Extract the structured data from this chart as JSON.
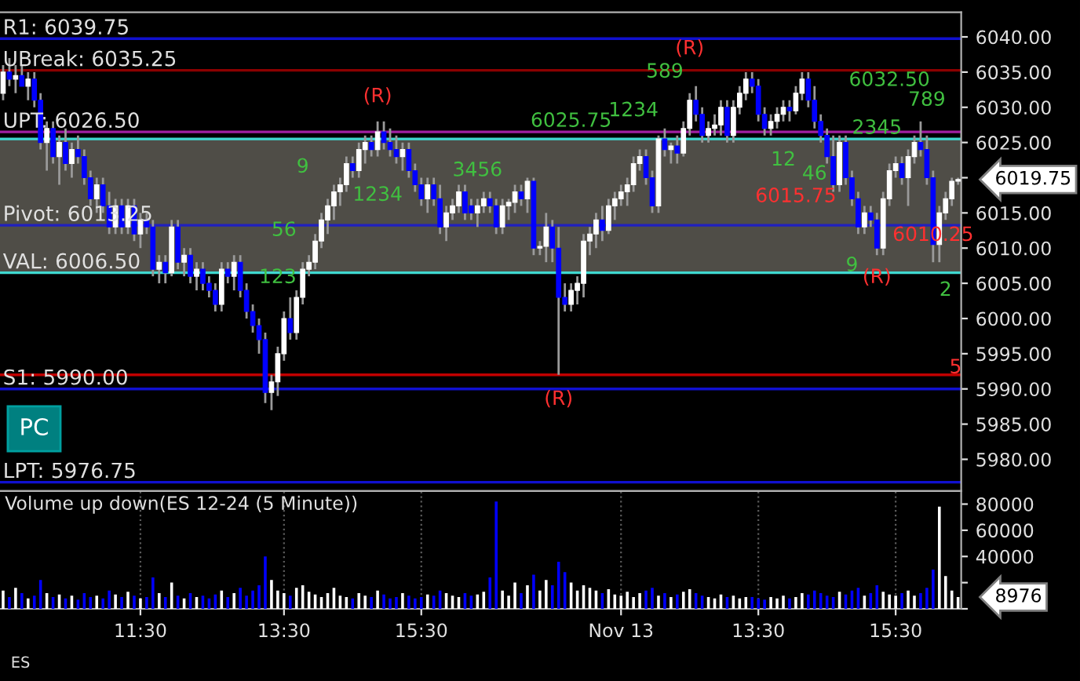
{
  "chart_data": [
    {
      "type": "candlestick",
      "tick_labels": "y",
      "categories": [
        null,
        null,
        null,
        null,
        null,
        null,
        null,
        null,
        null,
        null,
        null,
        null,
        null,
        null,
        null,
        null,
        null,
        null,
        null,
        null,
        null,
        null,
        null,
        null,
        null,
        null,
        null,
        null,
        null,
        null,
        null,
        null,
        null,
        null,
        null,
        null,
        null,
        null,
        null,
        null,
        null,
        null,
        null,
        null,
        null,
        null,
        null,
        null,
        null,
        null,
        null,
        null,
        null,
        null,
        null,
        null,
        null,
        null,
        null,
        null,
        null,
        null,
        null,
        null,
        null,
        null,
        null,
        null,
        null,
        null,
        null,
        null,
        null,
        null,
        null,
        null,
        null,
        null,
        null,
        null,
        null,
        null,
        null,
        null,
        null,
        null,
        null,
        null,
        null,
        null,
        null,
        null,
        null,
        null,
        null,
        null,
        null,
        null,
        null,
        null,
        null,
        null,
        null,
        null,
        null,
        null,
        null,
        null,
        null,
        null,
        null,
        null,
        null,
        null,
        null,
        null,
        null,
        null,
        null,
        null,
        null,
        null,
        null,
        null,
        null,
        null,
        null,
        null,
        null,
        null,
        null,
        null,
        null,
        null,
        null,
        null,
        null,
        null,
        null,
        null,
        null,
        null,
        null,
        null,
        null,
        null,
        null,
        null,
        null,
        null,
        null,
        null,
        null,
        null
      ],
      "ohlc": [
        [
          6032,
          6036,
          6031,
          6035
        ],
        [
          6035,
          6037,
          6033,
          6034
        ],
        [
          6034,
          6036,
          6032,
          6034.5
        ],
        [
          6034.5,
          6036,
          6033,
          6033
        ],
        [
          6033,
          6035,
          6031,
          6034
        ],
        [
          6034,
          6035,
          6030,
          6031
        ],
        [
          6031,
          6032,
          6024,
          6025
        ],
        [
          6025,
          6028,
          6021,
          6027
        ],
        [
          6027,
          6028,
          6022,
          6023
        ],
        [
          6023,
          6026,
          6019,
          6025
        ],
        [
          6025,
          6027,
          6021,
          6022
        ],
        [
          6022,
          6025,
          6020,
          6024
        ],
        [
          6024,
          6026,
          6022,
          6023
        ],
        [
          6023,
          6024,
          6019,
          6020
        ],
        [
          6020,
          6021,
          6016,
          6017
        ],
        [
          6017,
          6020,
          6015,
          6019
        ],
        [
          6019,
          6020,
          6015,
          6016
        ],
        [
          6016,
          6018,
          6012,
          6013
        ],
        [
          6013,
          6017,
          6012,
          6016
        ],
        [
          6016,
          6017,
          6012,
          6013
        ],
        [
          6013,
          6017,
          6012,
          6016
        ],
        [
          6016,
          6017,
          6011,
          6012
        ],
        [
          6012,
          6015,
          6010,
          6014
        ],
        [
          6014,
          6015,
          6012,
          6013
        ],
        [
          6013,
          6014,
          6006,
          6007
        ],
        [
          6007,
          6009,
          6005,
          6008
        ],
        [
          6008,
          6009,
          6005,
          6006.5
        ],
        [
          6006.5,
          6014,
          6006,
          6013
        ],
        [
          6013,
          6014,
          6007,
          6008
        ],
        [
          6008,
          6010,
          6006,
          6009
        ],
        [
          6009,
          6010,
          6005,
          6006
        ],
        [
          6006,
          6008,
          6004,
          6007
        ],
        [
          6007,
          6008,
          6004,
          6005
        ],
        [
          6005,
          6006,
          6003,
          6004
        ],
        [
          6004,
          6005,
          6001,
          6002
        ],
        [
          6002,
          6008,
          6001,
          6007
        ],
        [
          6007,
          6008,
          6005,
          6006
        ],
        [
          6006,
          6009,
          6004,
          6008
        ],
        [
          6008,
          6009,
          6003,
          6004
        ],
        [
          6004,
          6005,
          6000,
          6001
        ],
        [
          6001,
          6002,
          5998,
          5999
        ],
        [
          5999,
          6000,
          5995,
          5997
        ],
        [
          5997,
          5998,
          5988,
          5989.5
        ],
        [
          5989.5,
          5992,
          5987,
          5991
        ],
        [
          5991,
          5996,
          5989,
          5995
        ],
        [
          5995,
          6001,
          5994,
          6000
        ],
        [
          6000,
          6003,
          5997,
          5998
        ],
        [
          5998,
          6004,
          5997,
          6003
        ],
        [
          6003,
          6008,
          6002,
          6007
        ],
        [
          6007,
          6009,
          6006,
          6008
        ],
        [
          6008,
          6012,
          6007,
          6011
        ],
        [
          6011,
          6015,
          6010,
          6014
        ],
        [
          6014,
          6017,
          6012,
          6016
        ],
        [
          6016,
          6019,
          6014,
          6018
        ],
        [
          6018,
          6020,
          6016,
          6019
        ],
        [
          6019,
          6023,
          6018,
          6022
        ],
        [
          6022,
          6023,
          6020,
          6021
        ],
        [
          6021,
          6025,
          6020,
          6024
        ],
        [
          6024,
          6026,
          6022,
          6025
        ],
        [
          6025,
          6026,
          6023,
          6024
        ],
        [
          6024,
          6028,
          6023,
          6026.5
        ],
        [
          6026.5,
          6028,
          6024,
          6025
        ],
        [
          6025,
          6027,
          6023,
          6024
        ],
        [
          6024,
          6026,
          6022,
          6023
        ],
        [
          6023,
          6025,
          6021,
          6024
        ],
        [
          6024,
          6025,
          6020,
          6021
        ],
        [
          6021,
          6022,
          6018,
          6019
        ],
        [
          6019,
          6020,
          6016,
          6017
        ],
        [
          6017,
          6020,
          6015,
          6019
        ],
        [
          6019,
          6020,
          6016,
          6017
        ],
        [
          6017,
          6019,
          6012,
          6013
        ],
        [
          6013,
          6016,
          6011,
          6015
        ],
        [
          6015,
          6017,
          6014,
          6016
        ],
        [
          6016,
          6019,
          6015,
          6018
        ],
        [
          6018,
          6019,
          6014,
          6015
        ],
        [
          6016,
          6017,
          6014,
          6015
        ],
        [
          6015,
          6017,
          6013,
          6016
        ],
        [
          6016,
          6018,
          6015,
          6017
        ],
        [
          6017,
          6018,
          6015,
          6016
        ],
        [
          6016,
          6017,
          6012,
          6013
        ],
        [
          6013,
          6017,
          6012,
          6016
        ],
        [
          6016,
          6017,
          6014,
          6016.5
        ],
        [
          6016.5,
          6019,
          6015,
          6018
        ],
        [
          6018,
          6019,
          6016,
          6017
        ],
        [
          6017,
          6020,
          6015,
          6019.5
        ],
        [
          6019.5,
          6020,
          6009,
          6010
        ],
        [
          6010,
          6011,
          6009,
          6010.25
        ],
        [
          6010.25,
          6015,
          6008,
          6013
        ],
        [
          6013,
          6014,
          6008,
          6010
        ],
        [
          6010,
          6013,
          5992,
          6003
        ],
        [
          6003,
          6005,
          6001,
          6002
        ],
        [
          6002,
          6005,
          6001,
          6004
        ],
        [
          6004,
          6006,
          6002,
          6005
        ],
        [
          6005,
          6012,
          6003,
          6011
        ],
        [
          6011,
          6013,
          6009,
          6012
        ],
        [
          6012,
          6015,
          6010,
          6014
        ],
        [
          6014,
          6016,
          6011,
          6012.5
        ],
        [
          6012.5,
          6017,
          6012,
          6016
        ],
        [
          6016,
          6018,
          6014,
          6017
        ],
        [
          6017,
          6019,
          6016,
          6018
        ],
        [
          6018,
          6020,
          6016,
          6019
        ],
        [
          6019,
          6023,
          6018,
          6022
        ],
        [
          6022,
          6024,
          6021,
          6023
        ],
        [
          6023,
          6024,
          6019,
          6020
        ],
        [
          6020,
          6021,
          6015,
          6016
        ],
        [
          6016,
          6026,
          6015,
          6025.5
        ],
        [
          6025.5,
          6027,
          6023,
          6024
        ],
        [
          6024,
          6025,
          6022,
          6024.5
        ],
        [
          6024.5,
          6026,
          6022,
          6023.5
        ],
        [
          6023.5,
          6028,
          6023,
          6027
        ],
        [
          6027,
          6032,
          6026,
          6031
        ],
        [
          6031,
          6033,
          6028,
          6029
        ],
        [
          6029,
          6030,
          6025,
          6026
        ],
        [
          6026,
          6028,
          6025,
          6027
        ],
        [
          6027,
          6029,
          6026,
          6027.5
        ],
        [
          6027.5,
          6031,
          6026,
          6030
        ],
        [
          6030,
          6031,
          6025,
          6026
        ],
        [
          6026,
          6031,
          6025,
          6030
        ],
        [
          6030,
          6033,
          6029,
          6032
        ],
        [
          6032,
          6035,
          6031,
          6034
        ],
        [
          6034,
          6035,
          6032,
          6033
        ],
        [
          6033,
          6034,
          6028,
          6029
        ],
        [
          6029,
          6030,
          6026,
          6027
        ],
        [
          6027,
          6029,
          6026,
          6028
        ],
        [
          6028,
          6030,
          6027,
          6029
        ],
        [
          6029,
          6031,
          6028,
          6030
        ],
        [
          6030,
          6031,
          6028,
          6029.5
        ],
        [
          6029.5,
          6033,
          6029,
          6032
        ],
        [
          6032,
          6035,
          6031,
          6034
        ],
        [
          6034,
          6035,
          6030,
          6031
        ],
        [
          6031,
          6033,
          6027,
          6028
        ],
        [
          6028,
          6029,
          6025,
          6026
        ],
        [
          6026,
          6027,
          6022,
          6023
        ],
        [
          6023,
          6026,
          6018,
          6019
        ],
        [
          6019,
          6026,
          6018,
          6025
        ],
        [
          6025,
          6026,
          6019,
          6020
        ],
        [
          6020,
          6021,
          6016,
          6017
        ],
        [
          6017,
          6018,
          6012,
          6013
        ],
        [
          6013,
          6016,
          6012,
          6015
        ],
        [
          6015,
          6016,
          6013,
          6014
        ],
        [
          6014,
          6015,
          6009,
          6010
        ],
        [
          6010,
          6018,
          6009,
          6017
        ],
        [
          6017,
          6022,
          6016,
          6021
        ],
        [
          6021,
          6023,
          6020,
          6022
        ],
        [
          6022,
          6023,
          6019,
          6020
        ],
        [
          6020,
          6024,
          6016,
          6023
        ],
        [
          6023,
          6026,
          6022,
          6025
        ],
        [
          6025,
          6028,
          6023,
          6024
        ],
        [
          6024,
          6026,
          6019,
          6020
        ],
        [
          6020,
          6021,
          6008,
          6010.5
        ],
        [
          6010.5,
          6016,
          6008,
          6015
        ],
        [
          6015,
          6018,
          6014,
          6017
        ],
        [
          6017,
          6020,
          6016,
          6019.5
        ],
        [
          6019.5,
          6020,
          6019,
          6019.75
        ]
      ],
      "ylim": [
        5975.5,
        6043.5
      ],
      "yticks": [
        {
          "value": 5980,
          "label": "5980.00"
        },
        {
          "value": 5985,
          "label": "5985.00"
        },
        {
          "value": 5990,
          "label": "5990.00"
        },
        {
          "value": 5995,
          "label": "5995.00"
        },
        {
          "value": 6000,
          "label": "6000.00"
        },
        {
          "value": 6005,
          "label": "6005.00"
        },
        {
          "value": 6010,
          "label": "6010.00"
        },
        {
          "value": 6015,
          "label": "6015.00"
        },
        {
          "value": 6020,
          "label": null
        },
        {
          "value": 6025,
          "label": "6025.00"
        },
        {
          "value": 6030,
          "label": "6030.00"
        },
        {
          "value": 6035,
          "label": "6035.00"
        },
        {
          "value": 6040,
          "label": "6040.00"
        }
      ],
      "bands": [
        {
          "axis": "y",
          "from": 6006.5,
          "to": 6025.5,
          "color": "#4f4d47"
        }
      ],
      "ref_lines": [
        {
          "axis": "y",
          "value": 6039.75,
          "label": "R1: 6039.75",
          "color": "#1010d0"
        },
        {
          "axis": "y",
          "value": 6035.25,
          "label": "UBreak: 6035.25",
          "color": "#8b0000"
        },
        {
          "axis": "y",
          "value": 6026.5,
          "label": "UPT: 6026.50",
          "color": "#a020a0"
        },
        {
          "axis": "y",
          "value": 6025.5,
          "color": "#40d8d0"
        },
        {
          "axis": "y",
          "value": 6013.25,
          "label": "Pivot: 6013.25",
          "color": "#2020c0"
        },
        {
          "axis": "y",
          "value": 6006.5,
          "label": "VAL: 6006.50",
          "color": "#40d8d0"
        },
        {
          "axis": "y",
          "value": 5990,
          "label": "S1: 5990.00",
          "color": "#1010d0"
        },
        {
          "axis": "y",
          "value": 5976.75,
          "label": "LPT: 5976.75",
          "color": "#1010d0"
        },
        {
          "axis": "y",
          "value": 5992,
          "color": "#c00000"
        }
      ],
      "annotations": [
        "PC",
        "ES",
        "(R)",
        "(R)",
        "(R)",
        "(R)",
        "6025.75",
        "6032.50",
        "6015.75",
        "6010.25",
        "5",
        "6019.75",
        "123",
        "56",
        "9",
        "1234",
        "3456",
        "1234",
        "589",
        "12",
        "46",
        "9",
        "2345",
        "789",
        "2"
      ]
    },
    {
      "type": "bar",
      "title": "Volume up down(ES 12-24 (5 Minute))",
      "grid": "x",
      "categories": [
        null,
        null,
        null,
        null,
        null,
        null,
        null,
        null,
        null,
        null,
        null,
        null,
        null,
        null,
        null,
        null,
        null,
        null,
        null,
        null,
        null,
        null,
        "11:30",
        null,
        null,
        null,
        null,
        null,
        null,
        null,
        null,
        null,
        null,
        null,
        null,
        null,
        null,
        null,
        null,
        null,
        null,
        null,
        null,
        null,
        null,
        "13:30",
        null,
        null,
        null,
        null,
        null,
        null,
        null,
        null,
        null,
        null,
        null,
        null,
        null,
        null,
        null,
        null,
        null,
        null,
        null,
        null,
        null,
        "15:30",
        null,
        null,
        null,
        null,
        null,
        null,
        null,
        null,
        null,
        null,
        null,
        null,
        null,
        null,
        null,
        null,
        null,
        null,
        null,
        null,
        null,
        null,
        null,
        null,
        null,
        null,
        null,
        null,
        null,
        null,
        null,
        "Nov 13",
        null,
        null,
        null,
        null,
        null,
        null,
        null,
        null,
        null,
        null,
        null,
        null,
        null,
        null,
        null,
        null,
        null,
        null,
        null,
        null,
        null,
        "13:30",
        null,
        null,
        null,
        null,
        null,
        null,
        null,
        null,
        null,
        null,
        null,
        null,
        null,
        null,
        null,
        null,
        null,
        null,
        null,
        null,
        null,
        "15:30",
        null,
        null,
        null,
        null,
        null,
        null,
        null,
        null,
        null,
        null
      ],
      "values": [
        14000,
        9000,
        16000,
        12000,
        8000,
        10000,
        22000,
        12000,
        9000,
        11000,
        8000,
        10000,
        7000,
        12000,
        9000,
        10000,
        8000,
        14000,
        11000,
        9000,
        13000,
        10000,
        8000,
        9000,
        24000,
        12000,
        9000,
        20000,
        10000,
        8000,
        12000,
        9000,
        10000,
        8000,
        11000,
        14000,
        9000,
        12000,
        16000,
        10000,
        14000,
        18000,
        40000,
        22000,
        14000,
        12000,
        10000,
        16000,
        18000,
        13000,
        11000,
        9000,
        12000,
        16000,
        10000,
        9000,
        8000,
        12000,
        10000,
        9000,
        14000,
        11000,
        8000,
        9000,
        12000,
        10000,
        8000,
        9000,
        11000,
        10000,
        14000,
        12000,
        10000,
        9000,
        12000,
        10000,
        11000,
        13000,
        24000,
        82000,
        14000,
        10000,
        20000,
        12000,
        18000,
        26000,
        14000,
        22000,
        18000,
        36000,
        28000,
        20000,
        14000,
        18000,
        16000,
        14000,
        12000,
        15000,
        11000,
        10000,
        13000,
        9000,
        12000,
        14000,
        16000,
        10000,
        12000,
        9000,
        11000,
        13000,
        15000,
        12000,
        10000,
        9000,
        8000,
        11000,
        9000,
        10000,
        8000,
        9000,
        9000,
        8000,
        7000,
        9000,
        8000,
        10000,
        8000,
        9000,
        12000,
        11000,
        14000,
        12000,
        10000,
        9000,
        13000,
        11000,
        14000,
        16000,
        10000,
        12000,
        18000,
        13000,
        11000,
        10000,
        12000,
        14000,
        10000,
        12000,
        16000,
        30000,
        78000,
        25000,
        14000,
        9000
      ],
      "colors": [
        "#ffffff",
        "#0000ff",
        "#ffffff",
        "#0000ff",
        "#ffffff",
        "#0000ff",
        "#0000ff",
        "#ffffff",
        "#0000ff",
        "#ffffff",
        "#0000ff",
        "#ffffff",
        "#0000ff",
        "#0000ff",
        "#0000ff",
        "#ffffff",
        "#0000ff",
        "#0000ff",
        "#ffffff",
        "#0000ff",
        "#ffffff",
        "#0000ff",
        "#ffffff",
        "#0000ff",
        "#0000ff",
        "#ffffff",
        "#0000ff",
        "#ffffff",
        "#0000ff",
        "#ffffff",
        "#0000ff",
        "#ffffff",
        "#0000ff",
        "#0000ff",
        "#0000ff",
        "#ffffff",
        "#0000ff",
        "#ffffff",
        "#0000ff",
        "#0000ff",
        "#0000ff",
        "#0000ff",
        "#0000ff",
        "#ffffff",
        "#ffffff",
        "#ffffff",
        "#0000ff",
        "#ffffff",
        "#ffffff",
        "#ffffff",
        "#ffffff",
        "#ffffff",
        "#ffffff",
        "#ffffff",
        "#ffffff",
        "#ffffff",
        "#0000ff",
        "#ffffff",
        "#ffffff",
        "#0000ff",
        "#ffffff",
        "#0000ff",
        "#0000ff",
        "#0000ff",
        "#ffffff",
        "#0000ff",
        "#0000ff",
        "#0000ff",
        "#ffffff",
        "#0000ff",
        "#0000ff",
        "#ffffff",
        "#ffffff",
        "#ffffff",
        "#0000ff",
        "#0000ff",
        "#ffffff",
        "#ffffff",
        "#0000ff",
        "#0000ff",
        "#ffffff",
        "#ffffff",
        "#ffffff",
        "#0000ff",
        "#ffffff",
        "#0000ff",
        "#ffffff",
        "#ffffff",
        "#0000ff",
        "#0000ff",
        "#0000ff",
        "#ffffff",
        "#ffffff",
        "#ffffff",
        "#ffffff",
        "#ffffff",
        "#0000ff",
        "#ffffff",
        "#ffffff",
        "#ffffff",
        "#ffffff",
        "#ffffff",
        "#ffffff",
        "#0000ff",
        "#0000ff",
        "#ffffff",
        "#0000ff",
        "#ffffff",
        "#0000ff",
        "#ffffff",
        "#ffffff",
        "#0000ff",
        "#0000ff",
        "#ffffff",
        "#ffffff",
        "#ffffff",
        "#0000ff",
        "#ffffff",
        "#ffffff",
        "#ffffff",
        "#0000ff",
        "#0000ff",
        "#0000ff",
        "#ffffff",
        "#ffffff",
        "#ffffff",
        "#0000ff",
        "#ffffff",
        "#ffffff",
        "#0000ff",
        "#0000ff",
        "#0000ff",
        "#0000ff",
        "#0000ff",
        "#ffffff",
        "#0000ff",
        "#0000ff",
        "#0000ff",
        "#ffffff",
        "#0000ff",
        "#0000ff",
        "#ffffff",
        "#ffffff",
        "#ffffff",
        "#0000ff",
        "#ffffff",
        "#ffffff",
        "#0000ff",
        "#0000ff",
        "#0000ff",
        "#ffffff",
        "#ffffff",
        "#ffffff",
        "#ffffff"
      ],
      "ylim": [
        0,
        90000
      ],
      "yticks": [
        {
          "value": 0,
          "label": null
        },
        {
          "value": 20000,
          "label": null
        },
        40000,
        60000,
        80000
      ],
      "annotations": [
        "8976"
      ]
    }
  ]
}
